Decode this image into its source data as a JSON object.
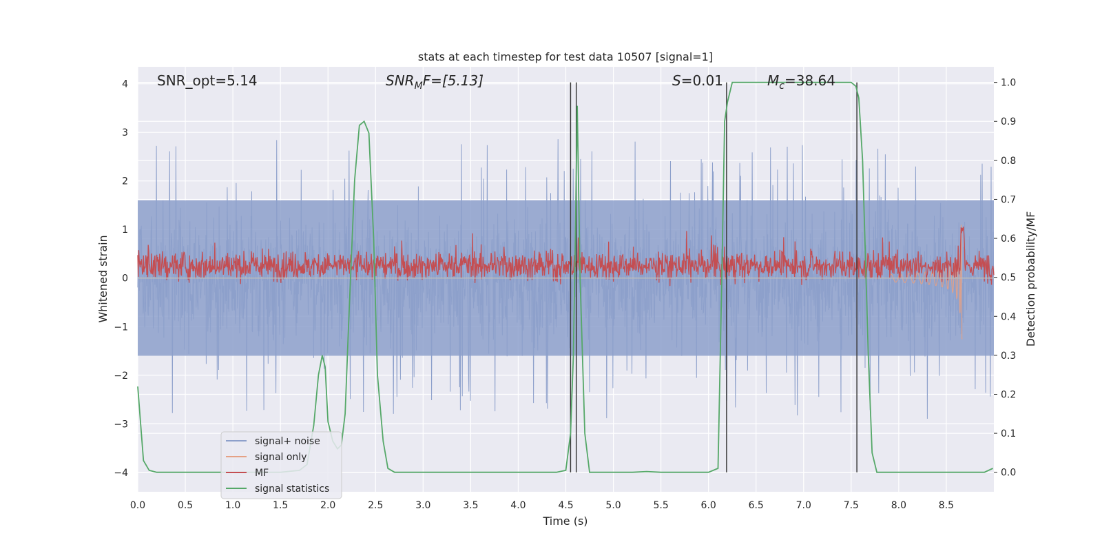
{
  "chart_data": {
    "type": "line",
    "title": "stats at each timestep for test data 10507 [signal=1]",
    "xlabel": "Time (s)",
    "ylabel_left": "Whitened strain",
    "ylabel_right": "Detection probability/MF",
    "xlim": [
      0.0,
      9.0
    ],
    "ylim_left": [
      -4.4,
      4.35
    ],
    "ylim_right": [
      -0.05,
      1.04
    ],
    "xticks": [
      "0.0",
      "0.5",
      "1.0",
      "1.5",
      "2.0",
      "2.5",
      "3.0",
      "3.5",
      "4.0",
      "4.5",
      "5.0",
      "5.5",
      "6.0",
      "6.5",
      "7.0",
      "7.5",
      "8.0",
      "8.5"
    ],
    "yticks_left": [
      "4",
      "3",
      "2",
      "1",
      "0",
      "−1",
      "−2",
      "−3",
      "−4"
    ],
    "yticks_right": [
      "1.0",
      "0.9",
      "0.8",
      "0.7",
      "0.6",
      "0.5",
      "0.4",
      "0.3",
      "0.2",
      "0.1",
      "0.0"
    ],
    "annotations": {
      "snr_opt": "SNR_opt=5.14",
      "snr_mf_label": "SNR",
      "snr_mf_sub": "M",
      "snr_mf_tail": "F=[5.13]",
      "s_label": "S",
      "s_value": "=0.01",
      "mc_label": "M",
      "mc_sub": "c",
      "mc_value": "=38.64"
    },
    "series": [
      {
        "name": "signal+ noise",
        "color": "#8da0cb",
        "kind": "noise",
        "amplitude_left_axis": 1.6
      },
      {
        "name": "signal only",
        "color": "#e5a185",
        "kind": "chirp",
        "end_time": 8.67
      },
      {
        "name": "MF",
        "color": "#c44e52",
        "kind": "mf_band",
        "center_right_axis": 0.53
      },
      {
        "name": "signal statistics",
        "color": "#55a868",
        "kind": "line",
        "x": [
          0.0,
          0.06,
          0.12,
          0.2,
          0.35,
          0.6,
          0.9,
          1.2,
          1.5,
          1.7,
          1.78,
          1.85,
          1.9,
          1.94,
          1.97,
          2.0,
          2.05,
          2.1,
          2.14,
          2.18,
          2.22,
          2.28,
          2.33,
          2.38,
          2.43,
          2.48,
          2.52,
          2.58,
          2.63,
          2.7,
          3.0,
          3.5,
          4.0,
          4.4,
          4.5,
          4.55,
          4.58,
          4.6,
          4.62,
          4.65,
          4.7,
          4.75,
          4.9,
          5.2,
          5.35,
          5.5,
          5.8,
          6.0,
          6.1,
          6.14,
          6.17,
          6.2,
          6.25,
          6.5,
          7.0,
          7.5,
          7.55,
          7.58,
          7.62,
          7.68,
          7.72,
          7.77,
          7.85,
          8.0,
          8.5,
          8.9,
          8.99
        ],
        "y": [
          0.22,
          0.03,
          0.005,
          0.0,
          0.0,
          0.0,
          0.0,
          0.0,
          0.0,
          0.005,
          0.02,
          0.12,
          0.25,
          0.3,
          0.27,
          0.13,
          0.08,
          0.06,
          0.07,
          0.15,
          0.4,
          0.75,
          0.89,
          0.9,
          0.87,
          0.6,
          0.25,
          0.08,
          0.01,
          0.0,
          0.0,
          0.0,
          0.0,
          0.0,
          0.005,
          0.1,
          0.3,
          0.6,
          0.94,
          0.5,
          0.1,
          0.0,
          0.0,
          0.0,
          0.002,
          0.0,
          0.0,
          0.0,
          0.01,
          0.5,
          0.9,
          0.95,
          1.0,
          1.0,
          1.0,
          1.0,
          0.99,
          0.96,
          0.8,
          0.3,
          0.05,
          0.0,
          0.0,
          0.0,
          0.0,
          0.0,
          0.01
        ]
      },
      {
        "name": "vertical markers",
        "color": "#3a3a3a",
        "kind": "vlines",
        "x": [
          4.55,
          4.61,
          6.19,
          7.56
        ]
      }
    ],
    "legend_position": "lower-left"
  }
}
